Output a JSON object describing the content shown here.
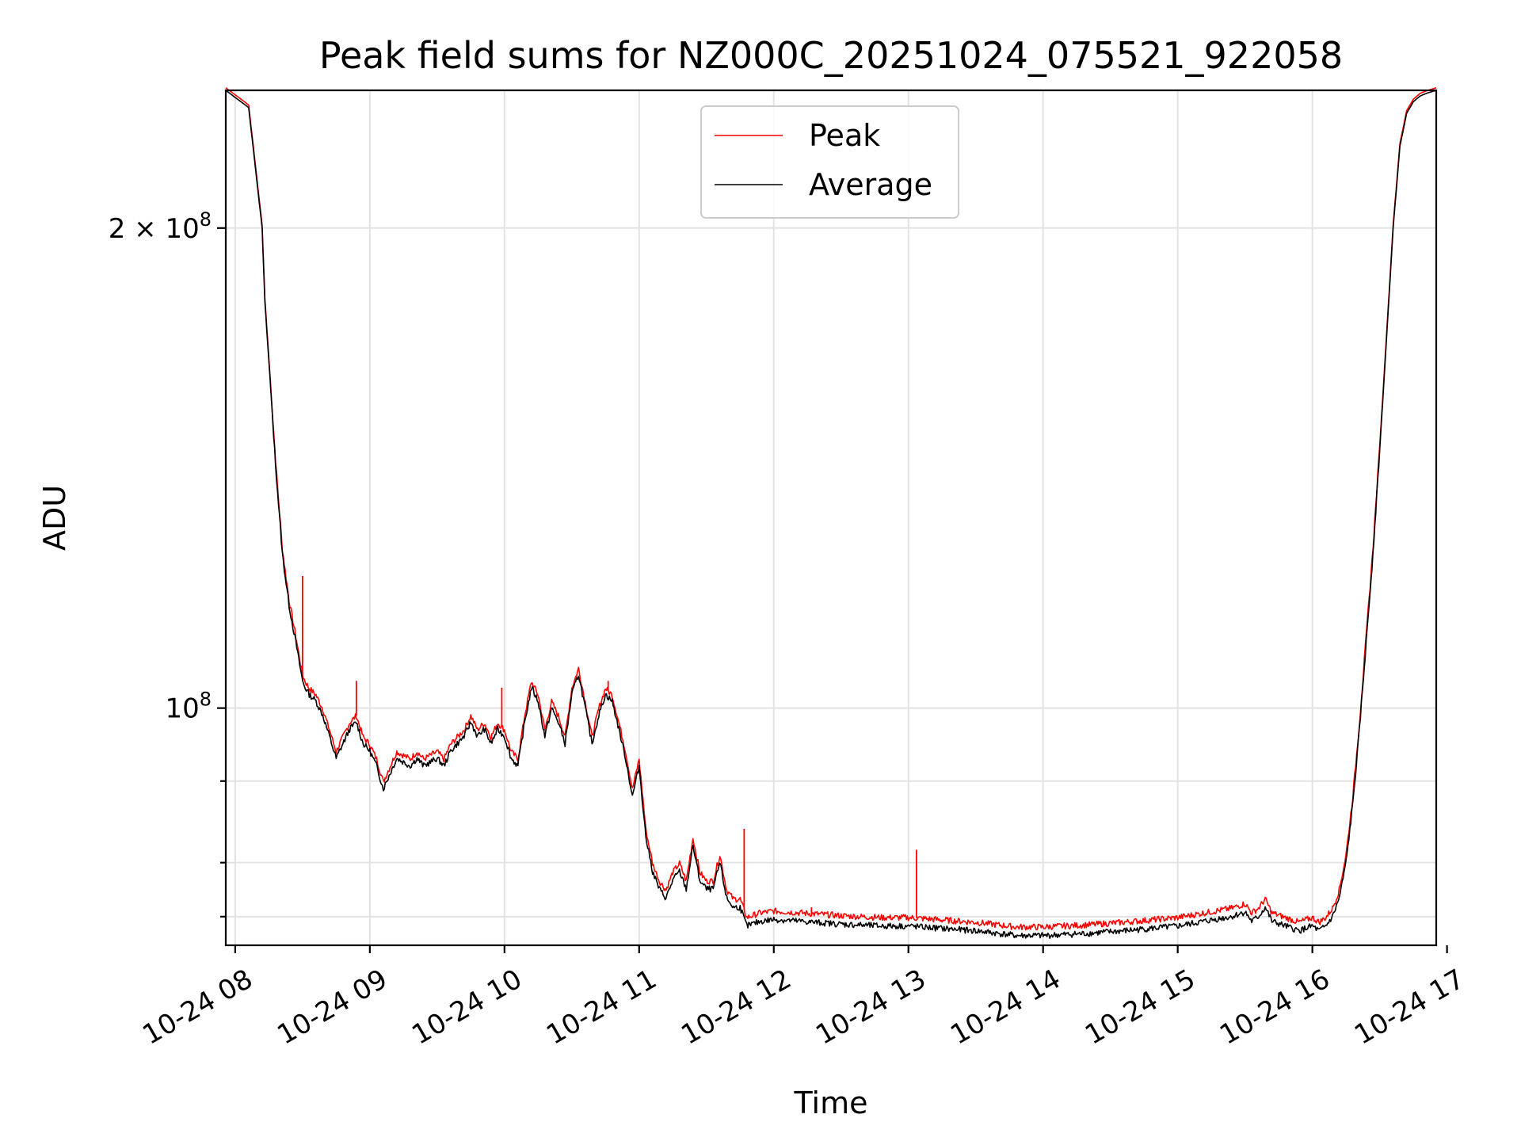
{
  "chart_data": {
    "type": "line",
    "title": "Peak field sums for NZ000C_20251024_075521_922058",
    "xlabel": "Time",
    "ylabel": "ADU",
    "xlim": [
      7.93,
      16.92
    ],
    "ylim_log": [
      71000000,
      244000000
    ],
    "y_scale": "log",
    "grid": true,
    "legend_position": "upper center",
    "x_ticks": [
      {
        "value": 8,
        "label": "10-24 08"
      },
      {
        "value": 9,
        "label": "10-24 09"
      },
      {
        "value": 10,
        "label": "10-24 10"
      },
      {
        "value": 11,
        "label": "10-24 11"
      },
      {
        "value": 12,
        "label": "10-24 12"
      },
      {
        "value": 13,
        "label": "10-24 13"
      },
      {
        "value": 14,
        "label": "10-24 14"
      },
      {
        "value": 15,
        "label": "10-24 15"
      },
      {
        "value": 16,
        "label": "10-24 16"
      },
      {
        "value": 17,
        "label": "10-24 17"
      }
    ],
    "y_ticks_major": [
      {
        "value": 100000000,
        "base": "10",
        "exp": "8",
        "prefix": ""
      },
      {
        "value": 200000000,
        "base": "10",
        "exp": "8",
        "prefix": "2 × "
      }
    ],
    "y_ticks_minor": [
      74000000,
      80000000,
      90000000
    ],
    "series": [
      {
        "name": "Peak",
        "color": "#ff0000",
        "offset": 900000,
        "x": [
          7.93,
          8.1,
          8.2,
          8.22,
          8.25,
          8.3,
          8.35,
          8.4,
          8.45,
          8.5,
          8.52,
          8.55,
          8.6,
          8.65,
          8.7,
          8.75,
          8.8,
          8.85,
          8.9,
          8.95,
          9.0,
          9.05,
          9.1,
          9.15,
          9.2,
          9.3,
          9.35,
          9.4,
          9.5,
          9.55,
          9.6,
          9.7,
          9.75,
          9.8,
          9.85,
          9.9,
          9.95,
          10.0,
          10.05,
          10.1,
          10.15,
          10.2,
          10.25,
          10.3,
          10.35,
          10.4,
          10.45,
          10.5,
          10.55,
          10.6,
          10.65,
          10.7,
          10.75,
          10.8,
          10.85,
          10.9,
          10.95,
          11.0,
          11.05,
          11.1,
          11.15,
          11.2,
          11.25,
          11.3,
          11.35,
          11.4,
          11.45,
          11.5,
          11.55,
          11.6,
          11.65,
          11.7,
          11.75,
          11.8,
          11.9,
          12.0,
          12.2,
          12.5,
          12.8,
          13.0,
          13.2,
          13.5,
          13.8,
          14.0,
          14.3,
          14.6,
          15.0,
          15.2,
          15.4,
          15.5,
          15.55,
          15.6,
          15.65,
          15.7,
          15.8,
          15.9,
          16.0,
          16.05,
          16.1,
          16.15,
          16.2,
          16.25,
          16.3,
          16.35,
          16.4,
          16.45,
          16.5,
          16.55,
          16.6,
          16.65,
          16.7,
          16.75,
          16.8,
          16.85,
          16.92
        ],
        "values": [
          244000000,
          238000000,
          200000000,
          180000000,
          165000000,
          142000000,
          125000000,
          116000000,
          110000000,
          104000000,
          103000000,
          102000000,
          101000000,
          99000000,
          96000000,
          93000000,
          95000000,
          97000000,
          98000000,
          95000000,
          94000000,
          92000000,
          89000000,
          91000000,
          93000000,
          92000000,
          93000000,
          92000000,
          93000000,
          92000000,
          94000000,
          96000000,
          98000000,
          96000000,
          97000000,
          95000000,
          97000000,
          96000000,
          93000000,
          92000000,
          98000000,
          103000000,
          101000000,
          96000000,
          100000000,
          98000000,
          95000000,
          102000000,
          105000000,
          100000000,
          95000000,
          99000000,
          102000000,
          101000000,
          97000000,
          93000000,
          88000000,
          92000000,
          83000000,
          79000000,
          77000000,
          76000000,
          78000000,
          79000000,
          77000000,
          82000000,
          78000000,
          77000000,
          77000000,
          80000000,
          76000000,
          75000000,
          75000000,
          73000000,
          73500000,
          73700000,
          73500000,
          73200000,
          73000000,
          73000000,
          72800000,
          72500000,
          72000000,
          72000000,
          72200000,
          72500000,
          73000000,
          73500000,
          74000000,
          74500000,
          73500000,
          74000000,
          75000000,
          73500000,
          73000000,
          72500000,
          73000000,
          72500000,
          73000000,
          74000000,
          76000000,
          80000000,
          87000000,
          97000000,
          110000000,
          125000000,
          145000000,
          170000000,
          200000000,
          225000000,
          236000000,
          240000000,
          242000000,
          243000000,
          244000000
        ],
        "spikes": [
          {
            "x": 8.5,
            "value": 121000000
          },
          {
            "x": 8.9,
            "value": 104000000
          },
          {
            "x": 9.98,
            "value": 103000000
          },
          {
            "x": 10.77,
            "value": 104000000
          },
          {
            "x": 11.78,
            "value": 84000000
          },
          {
            "x": 12.28,
            "value": 75000000
          },
          {
            "x": 13.06,
            "value": 81500000
          }
        ]
      },
      {
        "name": "Average",
        "color": "#000000",
        "offset": 0,
        "x": [
          7.93,
          8.1,
          8.2,
          8.22,
          8.25,
          8.3,
          8.35,
          8.4,
          8.45,
          8.5,
          8.52,
          8.55,
          8.6,
          8.65,
          8.7,
          8.75,
          8.8,
          8.85,
          8.9,
          8.95,
          9.0,
          9.05,
          9.1,
          9.15,
          9.2,
          9.3,
          9.35,
          9.4,
          9.5,
          9.55,
          9.6,
          9.7,
          9.75,
          9.8,
          9.85,
          9.9,
          9.95,
          10.0,
          10.05,
          10.1,
          10.15,
          10.2,
          10.25,
          10.3,
          10.35,
          10.4,
          10.45,
          10.5,
          10.55,
          10.6,
          10.65,
          10.7,
          10.75,
          10.8,
          10.85,
          10.9,
          10.95,
          11.0,
          11.05,
          11.1,
          11.15,
          11.2,
          11.25,
          11.3,
          11.35,
          11.4,
          11.45,
          11.5,
          11.55,
          11.6,
          11.65,
          11.7,
          11.75,
          11.8,
          11.9,
          12.0,
          12.2,
          12.5,
          12.8,
          13.0,
          13.2,
          13.5,
          13.8,
          14.0,
          14.3,
          14.6,
          15.0,
          15.2,
          15.4,
          15.5,
          15.55,
          15.6,
          15.65,
          15.7,
          15.8,
          15.9,
          16.0,
          16.05,
          16.1,
          16.15,
          16.2,
          16.25,
          16.3,
          16.35,
          16.4,
          16.45,
          16.5,
          16.55,
          16.6,
          16.65,
          16.7,
          16.75,
          16.8,
          16.85,
          16.92
        ],
        "values": [
          244000000,
          238000000,
          200000000,
          180000000,
          165000000,
          142000000,
          125000000,
          116000000,
          110000000,
          104000000,
          103000000,
          102000000,
          101000000,
          99000000,
          96000000,
          93000000,
          95000000,
          97000000,
          98000000,
          95000000,
          94000000,
          92000000,
          89000000,
          91000000,
          93000000,
          92000000,
          93000000,
          92000000,
          93000000,
          92000000,
          94000000,
          96000000,
          98000000,
          96000000,
          97000000,
          95000000,
          97000000,
          96000000,
          93000000,
          92000000,
          98000000,
          103000000,
          101000000,
          96000000,
          100000000,
          98000000,
          95000000,
          102000000,
          105000000,
          100000000,
          95000000,
          99000000,
          102000000,
          101000000,
          97000000,
          93000000,
          88000000,
          92000000,
          83000000,
          79000000,
          77000000,
          76000000,
          78000000,
          79000000,
          77000000,
          82000000,
          78000000,
          77000000,
          77000000,
          80000000,
          76000000,
          75000000,
          75000000,
          73000000,
          73500000,
          73700000,
          73500000,
          73200000,
          73000000,
          73000000,
          72800000,
          72500000,
          72000000,
          72000000,
          72200000,
          72500000,
          73000000,
          73500000,
          74000000,
          74500000,
          73500000,
          74000000,
          75000000,
          73500000,
          73000000,
          72500000,
          73000000,
          72500000,
          73000000,
          74000000,
          76000000,
          80000000,
          87000000,
          97000000,
          110000000,
          125000000,
          145000000,
          170000000,
          200000000,
          225000000,
          236000000,
          240000000,
          242000000,
          243000000,
          244000000
        ]
      }
    ]
  }
}
